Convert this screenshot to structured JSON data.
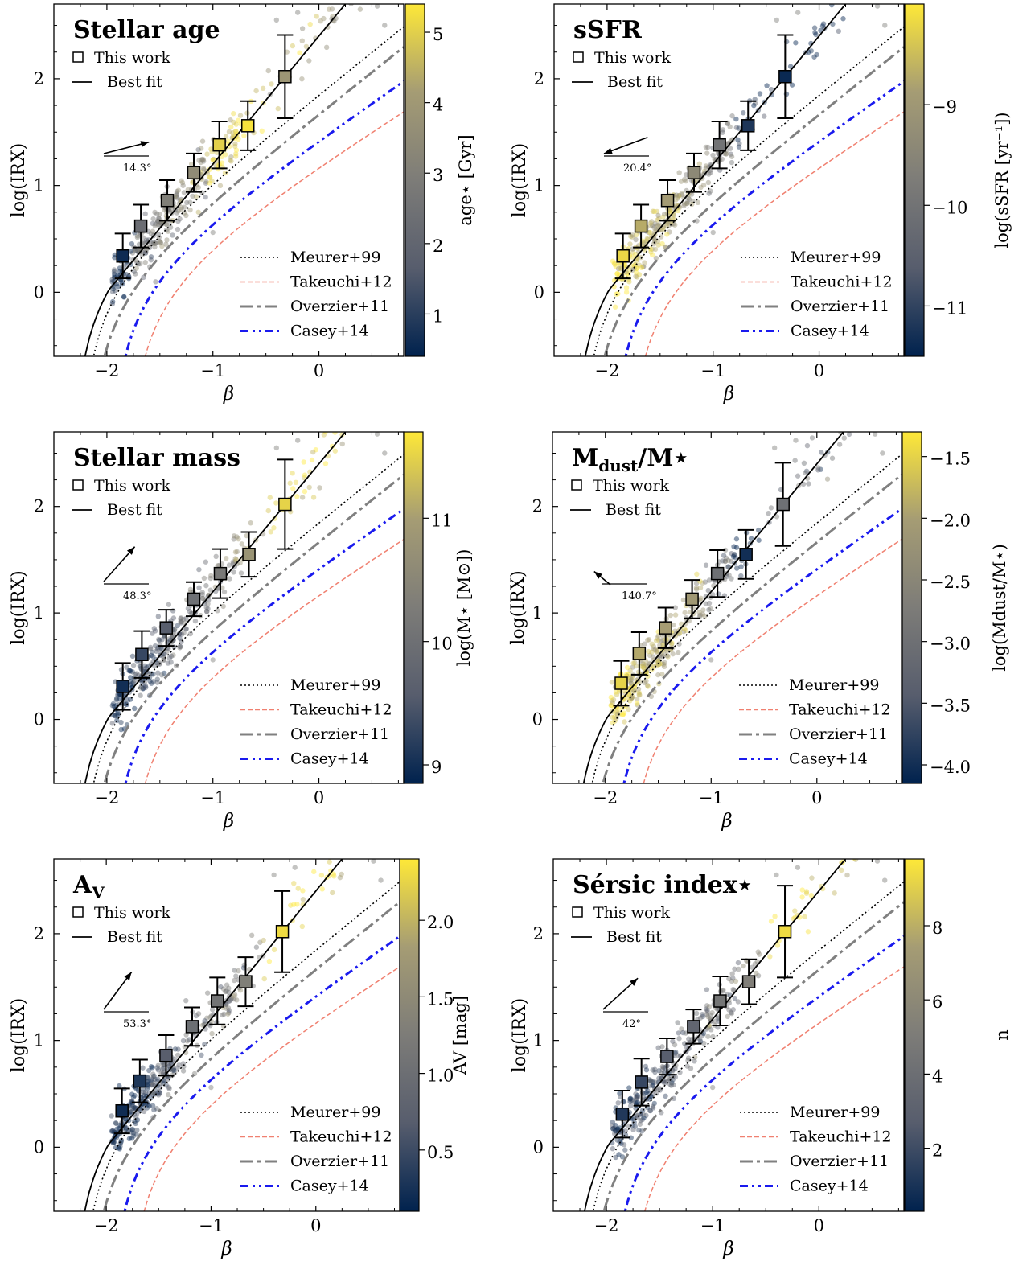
{
  "figure": {
    "x_ticks": [
      "−2",
      "−1",
      "0"
    ],
    "y_ticks": [
      "0",
      "1",
      "2"
    ],
    "xlabel": "β",
    "ylabel": "log(IRX)",
    "legend_top": [
      "This work",
      "Best fit"
    ],
    "legend_bottom": [
      "Meurer+99",
      "Takeuchi+12",
      "Overzier+11",
      "Casey+14"
    ],
    "colors": {
      "colormap": [
        "#00224e",
        "#575d6d",
        "#7d7c78",
        "#a59c74",
        "#fee838"
      ],
      "meurer": "#000000",
      "takeuchi": "#f08070",
      "overzier": "#808080",
      "casey": "#1a1aee",
      "fit": "#000000"
    }
  },
  "chart_data": [
    {
      "type": "scatter",
      "title": "Stellar age",
      "colorbar_label": "age⋆ [Gyr]",
      "colorbar_ticks": [
        "1",
        "2",
        "3",
        "4",
        "5"
      ],
      "colorbar_tick_values": [
        1,
        2,
        3,
        4,
        5
      ],
      "colorbar_range": [
        0.4,
        5.4
      ],
      "angle_label": "14.3°",
      "xlim": [
        -2.5,
        0.8
      ],
      "ylim": [
        -0.6,
        2.7
      ],
      "best_fit": {
        "slope": 1.2,
        "intercept": 2.4
      },
      "binned_points": [
        {
          "x": -1.85,
          "y": 0.34,
          "err": 0.21,
          "c": 0.6
        },
        {
          "x": -1.68,
          "y": 0.62,
          "err": 0.2,
          "c": 2.3
        },
        {
          "x": -1.43,
          "y": 0.86,
          "err": 0.19,
          "c": 3.0
        },
        {
          "x": -1.18,
          "y": 1.12,
          "err": 0.18,
          "c": 3.5
        },
        {
          "x": -0.94,
          "y": 1.38,
          "err": 0.22,
          "c": 5.0
        },
        {
          "x": -0.67,
          "y": 1.56,
          "err": 0.23,
          "c": 5.3
        },
        {
          "x": -0.32,
          "y": 2.02,
          "err": 0.39,
          "c": 3.9
        }
      ]
    },
    {
      "type": "scatter",
      "title": "sSFR",
      "colorbar_label": "log(sSFR [yr⁻¹])",
      "colorbar_ticks": [
        "−9",
        "−10",
        "−11"
      ],
      "colorbar_tick_values": [
        -9,
        -10,
        -11
      ],
      "colorbar_range": [
        -11.5,
        -8.0
      ],
      "angle_label": "20.4°",
      "xlim": [
        -2.5,
        0.8
      ],
      "ylim": [
        -0.6,
        2.7
      ],
      "best_fit": {
        "slope": 1.2,
        "intercept": 2.4
      },
      "binned_points": [
        {
          "x": -1.85,
          "y": 0.34,
          "err": 0.21,
          "c": -8.2
        },
        {
          "x": -1.68,
          "y": 0.62,
          "err": 0.2,
          "c": -8.7
        },
        {
          "x": -1.43,
          "y": 0.86,
          "err": 0.19,
          "c": -8.9
        },
        {
          "x": -1.18,
          "y": 1.12,
          "err": 0.18,
          "c": -9.4
        },
        {
          "x": -0.94,
          "y": 1.38,
          "err": 0.22,
          "c": -10.0
        },
        {
          "x": -0.67,
          "y": 1.56,
          "err": 0.23,
          "c": -11.2
        },
        {
          "x": -0.32,
          "y": 2.02,
          "err": 0.39,
          "c": -11.4
        }
      ]
    },
    {
      "type": "scatter",
      "title": "Stellar mass",
      "colorbar_label": "log(M⋆ [M⊙])",
      "colorbar_ticks": [
        "9",
        "10",
        "11"
      ],
      "colorbar_tick_values": [
        9,
        10,
        11
      ],
      "colorbar_range": [
        8.85,
        11.7
      ],
      "angle_label": "48.3°",
      "xlim": [
        -2.5,
        0.8
      ],
      "ylim": [
        -0.6,
        2.7
      ],
      "best_fit": {
        "slope": 1.2,
        "intercept": 2.4
      },
      "binned_points": [
        {
          "x": -1.85,
          "y": 0.31,
          "err": 0.22,
          "c": 9.0
        },
        {
          "x": -1.67,
          "y": 0.61,
          "err": 0.22,
          "c": 9.3
        },
        {
          "x": -1.44,
          "y": 0.86,
          "err": 0.17,
          "c": 9.6
        },
        {
          "x": -1.18,
          "y": 1.13,
          "err": 0.16,
          "c": 10.0
        },
        {
          "x": -0.93,
          "y": 1.37,
          "err": 0.23,
          "c": 10.2
        },
        {
          "x": -0.66,
          "y": 1.55,
          "err": 0.21,
          "c": 10.8
        },
        {
          "x": -0.32,
          "y": 2.02,
          "err": 0.42,
          "c": 11.5
        }
      ]
    },
    {
      "type": "scatter",
      "title": "M",
      "title_sub": "dust",
      "title_tail": "/M⋆",
      "colorbar_label": "log(Mdust/M⋆)",
      "colorbar_ticks": [
        "−1.5",
        "−2.0",
        "−2.5",
        "−3.0",
        "−3.5",
        "−4.0"
      ],
      "colorbar_tick_values": [
        -1.5,
        -2.0,
        -2.5,
        -3.0,
        -3.5,
        -4.0
      ],
      "colorbar_range": [
        -4.15,
        -1.3
      ],
      "angle_label": "140.7°",
      "xlim": [
        -2.5,
        0.8
      ],
      "ylim": [
        -0.6,
        2.7
      ],
      "best_fit": {
        "slope": 1.2,
        "intercept": 2.4
      },
      "binned_points": [
        {
          "x": -1.85,
          "y": 0.34,
          "err": 0.21,
          "c": -1.5
        },
        {
          "x": -1.68,
          "y": 0.62,
          "err": 0.2,
          "c": -1.9
        },
        {
          "x": -1.43,
          "y": 0.86,
          "err": 0.19,
          "c": -2.0
        },
        {
          "x": -1.18,
          "y": 1.13,
          "err": 0.18,
          "c": -2.1
        },
        {
          "x": -0.94,
          "y": 1.37,
          "err": 0.22,
          "c": -3.0
        },
        {
          "x": -0.67,
          "y": 1.55,
          "err": 0.23,
          "c": -4.0
        },
        {
          "x": -0.32,
          "y": 2.02,
          "err": 0.39,
          "c": -3.0
        }
      ]
    },
    {
      "type": "scatter",
      "title": "A",
      "title_sub": "V",
      "colorbar_label": "AV [mag]",
      "colorbar_ticks": [
        "0.5",
        "1.0",
        "1.5",
        "2.0"
      ],
      "colorbar_tick_values": [
        0.5,
        1.0,
        1.5,
        2.0
      ],
      "colorbar_range": [
        0.1,
        2.4
      ],
      "angle_label": "53.3°",
      "xlim": [
        -2.5,
        0.8
      ],
      "ylim": [
        -0.6,
        2.7
      ],
      "best_fit": {
        "slope": 1.2,
        "intercept": 2.4
      },
      "binned_points": [
        {
          "x": -1.85,
          "y": 0.34,
          "err": 0.21,
          "c": 0.2
        },
        {
          "x": -1.68,
          "y": 0.62,
          "err": 0.2,
          "c": 0.3
        },
        {
          "x": -1.43,
          "y": 0.86,
          "err": 0.19,
          "c": 0.7
        },
        {
          "x": -1.18,
          "y": 1.13,
          "err": 0.18,
          "c": 1.0
        },
        {
          "x": -0.94,
          "y": 1.37,
          "err": 0.22,
          "c": 1.1
        },
        {
          "x": -0.67,
          "y": 1.55,
          "err": 0.23,
          "c": 1.3
        },
        {
          "x": -0.32,
          "y": 2.02,
          "err": 0.38,
          "c": 2.3
        }
      ]
    },
    {
      "type": "scatter",
      "title": "Sérsic index⋆",
      "colorbar_label": "n",
      "colorbar_ticks": [
        "2",
        "4",
        "6",
        "8"
      ],
      "colorbar_tick_values": [
        2,
        4,
        6,
        8
      ],
      "colorbar_range": [
        0.3,
        9.8
      ],
      "angle_label": "42°",
      "xlim": [
        -2.5,
        0.8
      ],
      "ylim": [
        -0.6,
        2.7
      ],
      "best_fit": {
        "slope": 1.2,
        "intercept": 2.4
      },
      "binned_points": [
        {
          "x": -1.85,
          "y": 0.31,
          "err": 0.22,
          "c": 1.2
        },
        {
          "x": -1.67,
          "y": 0.61,
          "err": 0.22,
          "c": 1.8
        },
        {
          "x": -1.43,
          "y": 0.85,
          "err": 0.17,
          "c": 2.8
        },
        {
          "x": -1.18,
          "y": 1.13,
          "err": 0.16,
          "c": 3.3
        },
        {
          "x": -0.93,
          "y": 1.37,
          "err": 0.23,
          "c": 4.5
        },
        {
          "x": -0.66,
          "y": 1.55,
          "err": 0.21,
          "c": 5.2
        },
        {
          "x": -0.32,
          "y": 2.02,
          "err": 0.43,
          "c": 9.4
        }
      ]
    }
  ]
}
